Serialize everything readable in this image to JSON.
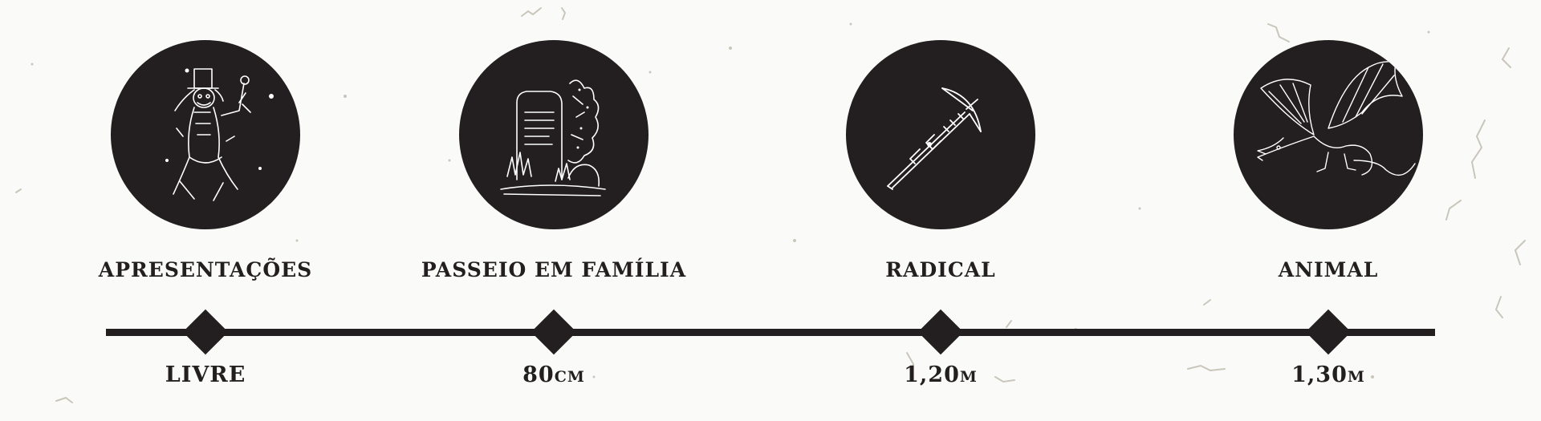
{
  "categories": [
    {
      "label": "APRESENTAÇÕES",
      "value": "LIVRE",
      "icon": "ghost-magician-icon"
    },
    {
      "label": "PASSEIO EM FAMÍLIA",
      "value": "80cm",
      "icon": "tombstone-icon"
    },
    {
      "label": "RADICAL",
      "value": "1,20m",
      "icon": "crossbow-icon"
    },
    {
      "label": "ANIMAL",
      "value": "1,30m",
      "icon": "dragon-icon"
    }
  ],
  "colors": {
    "ink": "#231f20",
    "background": "#fafaf8",
    "texture": "#c9c6bb",
    "engraving": "#ffffff"
  }
}
